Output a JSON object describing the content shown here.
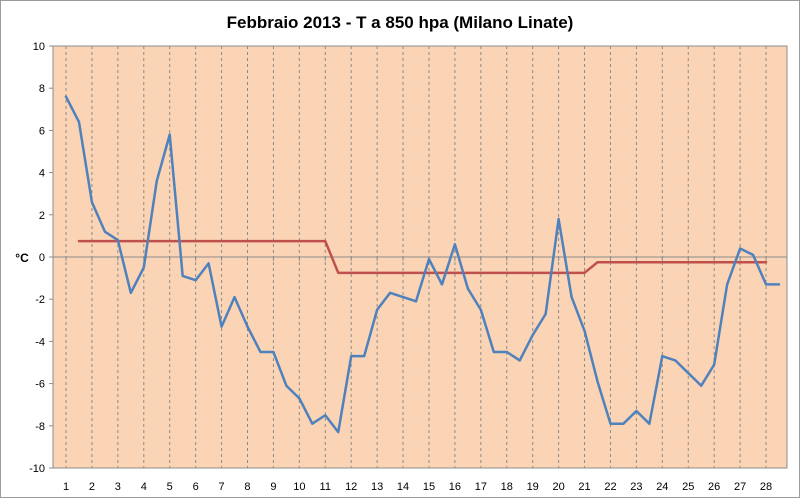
{
  "chart_data": {
    "type": "line",
    "title": "Febbraio 2013 - T a 850 hpa (Milano Linate)",
    "xlabel": "",
    "ylabel": "°C",
    "ylim": [
      -10,
      10
    ],
    "yticks": [
      10,
      8,
      6,
      4,
      2,
      0,
      -2,
      -4,
      -6,
      -8,
      -10
    ],
    "xlim": [
      1,
      28.5
    ],
    "xticks": [
      "1",
      "2",
      "3",
      "4",
      "5",
      "6",
      "7",
      "8",
      "9",
      "10",
      "11",
      "12",
      "13",
      "14",
      "15",
      "16",
      "17",
      "18",
      "19",
      "20",
      "21",
      "22",
      "23",
      "24",
      "25",
      "26",
      "27",
      "28"
    ],
    "grid": "vertical dashed lines at each day",
    "legend": "none",
    "plot_background": "#fad4b4",
    "series": [
      {
        "color": "#4f81bd",
        "x": [
          1,
          1.5,
          2,
          2.5,
          3,
          3.5,
          4,
          4.5,
          5,
          5.5,
          6,
          6.5,
          7,
          7.5,
          8,
          8.5,
          9,
          9.5,
          10,
          10.5,
          11,
          11.5,
          12,
          12.5,
          13,
          13.5,
          14,
          14.5,
          15,
          15.5,
          16,
          16.5,
          17,
          17.5,
          18,
          18.5,
          19,
          19.5,
          20,
          20.5,
          21,
          21.5,
          22,
          22.5,
          23,
          23.5,
          24,
          24.5,
          25,
          25.5,
          26,
          26.5,
          27,
          27.5,
          28,
          28.5
        ],
        "values": [
          7.6,
          6.4,
          2.6,
          1.2,
          0.8,
          -1.7,
          -0.5,
          3.6,
          5.8,
          -0.9,
          -1.1,
          -0.3,
          -3.3,
          -1.9,
          -3.3,
          -4.5,
          -4.5,
          -6.1,
          -6.7,
          -7.9,
          -7.5,
          -8.3,
          -4.7,
          -4.7,
          -2.5,
          -1.7,
          -1.9,
          -2.1,
          -0.1,
          -1.3,
          0.6,
          -1.5,
          -2.5,
          -4.5,
          -4.5,
          -4.9,
          -3.7,
          -2.7,
          1.8,
          -1.9,
          -3.5,
          -5.9,
          -7.9,
          -7.9,
          -7.3,
          -7.9,
          -4.7,
          -4.9,
          -5.5,
          -6.1,
          -5.1,
          -1.3,
          0.4,
          0.1,
          -1.3,
          -1.3
        ]
      },
      {
        "color": "#c0504d",
        "x": [
          1.5,
          11,
          11.5,
          21,
          21.5,
          28
        ],
        "values": [
          0.75,
          0.75,
          -0.75,
          -0.75,
          -0.25,
          -0.25
        ]
      }
    ]
  }
}
